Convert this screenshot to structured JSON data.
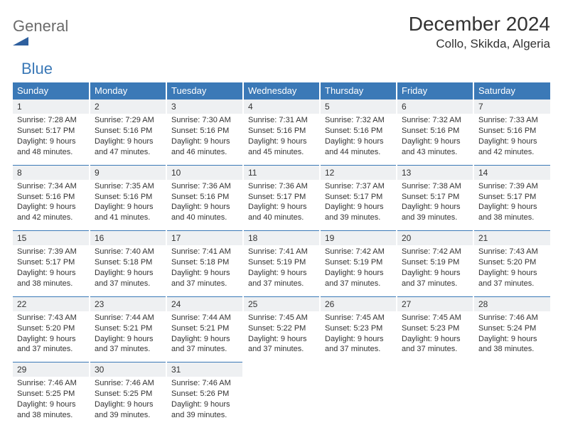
{
  "brand": {
    "general": "General",
    "blue": "Blue"
  },
  "title": "December 2024",
  "location": "Collo, Skikda, Algeria",
  "colors": {
    "header_bg": "#3b79b7",
    "header_text": "#ffffff",
    "daynum_bg": "#eef0f2",
    "daynum_border": "#3b79b7",
    "text": "#333333",
    "logo_gray": "#6b6b6b",
    "logo_blue": "#3b79b7"
  },
  "weekdays": [
    "Sunday",
    "Monday",
    "Tuesday",
    "Wednesday",
    "Thursday",
    "Friday",
    "Saturday"
  ],
  "weeks": [
    [
      {
        "n": "1",
        "sr": "Sunrise: 7:28 AM",
        "ss": "Sunset: 5:17 PM",
        "dl1": "Daylight: 9 hours",
        "dl2": "and 48 minutes."
      },
      {
        "n": "2",
        "sr": "Sunrise: 7:29 AM",
        "ss": "Sunset: 5:16 PM",
        "dl1": "Daylight: 9 hours",
        "dl2": "and 47 minutes."
      },
      {
        "n": "3",
        "sr": "Sunrise: 7:30 AM",
        "ss": "Sunset: 5:16 PM",
        "dl1": "Daylight: 9 hours",
        "dl2": "and 46 minutes."
      },
      {
        "n": "4",
        "sr": "Sunrise: 7:31 AM",
        "ss": "Sunset: 5:16 PM",
        "dl1": "Daylight: 9 hours",
        "dl2": "and 45 minutes."
      },
      {
        "n": "5",
        "sr": "Sunrise: 7:32 AM",
        "ss": "Sunset: 5:16 PM",
        "dl1": "Daylight: 9 hours",
        "dl2": "and 44 minutes."
      },
      {
        "n": "6",
        "sr": "Sunrise: 7:32 AM",
        "ss": "Sunset: 5:16 PM",
        "dl1": "Daylight: 9 hours",
        "dl2": "and 43 minutes."
      },
      {
        "n": "7",
        "sr": "Sunrise: 7:33 AM",
        "ss": "Sunset: 5:16 PM",
        "dl1": "Daylight: 9 hours",
        "dl2": "and 42 minutes."
      }
    ],
    [
      {
        "n": "8",
        "sr": "Sunrise: 7:34 AM",
        "ss": "Sunset: 5:16 PM",
        "dl1": "Daylight: 9 hours",
        "dl2": "and 42 minutes."
      },
      {
        "n": "9",
        "sr": "Sunrise: 7:35 AM",
        "ss": "Sunset: 5:16 PM",
        "dl1": "Daylight: 9 hours",
        "dl2": "and 41 minutes."
      },
      {
        "n": "10",
        "sr": "Sunrise: 7:36 AM",
        "ss": "Sunset: 5:16 PM",
        "dl1": "Daylight: 9 hours",
        "dl2": "and 40 minutes."
      },
      {
        "n": "11",
        "sr": "Sunrise: 7:36 AM",
        "ss": "Sunset: 5:17 PM",
        "dl1": "Daylight: 9 hours",
        "dl2": "and 40 minutes."
      },
      {
        "n": "12",
        "sr": "Sunrise: 7:37 AM",
        "ss": "Sunset: 5:17 PM",
        "dl1": "Daylight: 9 hours",
        "dl2": "and 39 minutes."
      },
      {
        "n": "13",
        "sr": "Sunrise: 7:38 AM",
        "ss": "Sunset: 5:17 PM",
        "dl1": "Daylight: 9 hours",
        "dl2": "and 39 minutes."
      },
      {
        "n": "14",
        "sr": "Sunrise: 7:39 AM",
        "ss": "Sunset: 5:17 PM",
        "dl1": "Daylight: 9 hours",
        "dl2": "and 38 minutes."
      }
    ],
    [
      {
        "n": "15",
        "sr": "Sunrise: 7:39 AM",
        "ss": "Sunset: 5:17 PM",
        "dl1": "Daylight: 9 hours",
        "dl2": "and 38 minutes."
      },
      {
        "n": "16",
        "sr": "Sunrise: 7:40 AM",
        "ss": "Sunset: 5:18 PM",
        "dl1": "Daylight: 9 hours",
        "dl2": "and 37 minutes."
      },
      {
        "n": "17",
        "sr": "Sunrise: 7:41 AM",
        "ss": "Sunset: 5:18 PM",
        "dl1": "Daylight: 9 hours",
        "dl2": "and 37 minutes."
      },
      {
        "n": "18",
        "sr": "Sunrise: 7:41 AM",
        "ss": "Sunset: 5:19 PM",
        "dl1": "Daylight: 9 hours",
        "dl2": "and 37 minutes."
      },
      {
        "n": "19",
        "sr": "Sunrise: 7:42 AM",
        "ss": "Sunset: 5:19 PM",
        "dl1": "Daylight: 9 hours",
        "dl2": "and 37 minutes."
      },
      {
        "n": "20",
        "sr": "Sunrise: 7:42 AM",
        "ss": "Sunset: 5:19 PM",
        "dl1": "Daylight: 9 hours",
        "dl2": "and 37 minutes."
      },
      {
        "n": "21",
        "sr": "Sunrise: 7:43 AM",
        "ss": "Sunset: 5:20 PM",
        "dl1": "Daylight: 9 hours",
        "dl2": "and 37 minutes."
      }
    ],
    [
      {
        "n": "22",
        "sr": "Sunrise: 7:43 AM",
        "ss": "Sunset: 5:20 PM",
        "dl1": "Daylight: 9 hours",
        "dl2": "and 37 minutes."
      },
      {
        "n": "23",
        "sr": "Sunrise: 7:44 AM",
        "ss": "Sunset: 5:21 PM",
        "dl1": "Daylight: 9 hours",
        "dl2": "and 37 minutes."
      },
      {
        "n": "24",
        "sr": "Sunrise: 7:44 AM",
        "ss": "Sunset: 5:21 PM",
        "dl1": "Daylight: 9 hours",
        "dl2": "and 37 minutes."
      },
      {
        "n": "25",
        "sr": "Sunrise: 7:45 AM",
        "ss": "Sunset: 5:22 PM",
        "dl1": "Daylight: 9 hours",
        "dl2": "and 37 minutes."
      },
      {
        "n": "26",
        "sr": "Sunrise: 7:45 AM",
        "ss": "Sunset: 5:23 PM",
        "dl1": "Daylight: 9 hours",
        "dl2": "and 37 minutes."
      },
      {
        "n": "27",
        "sr": "Sunrise: 7:45 AM",
        "ss": "Sunset: 5:23 PM",
        "dl1": "Daylight: 9 hours",
        "dl2": "and 37 minutes."
      },
      {
        "n": "28",
        "sr": "Sunrise: 7:46 AM",
        "ss": "Sunset: 5:24 PM",
        "dl1": "Daylight: 9 hours",
        "dl2": "and 38 minutes."
      }
    ],
    [
      {
        "n": "29",
        "sr": "Sunrise: 7:46 AM",
        "ss": "Sunset: 5:25 PM",
        "dl1": "Daylight: 9 hours",
        "dl2": "and 38 minutes."
      },
      {
        "n": "30",
        "sr": "Sunrise: 7:46 AM",
        "ss": "Sunset: 5:25 PM",
        "dl1": "Daylight: 9 hours",
        "dl2": "and 39 minutes."
      },
      {
        "n": "31",
        "sr": "Sunrise: 7:46 AM",
        "ss": "Sunset: 5:26 PM",
        "dl1": "Daylight: 9 hours",
        "dl2": "and 39 minutes."
      },
      {
        "empty": true
      },
      {
        "empty": true
      },
      {
        "empty": true
      },
      {
        "empty": true
      }
    ]
  ]
}
